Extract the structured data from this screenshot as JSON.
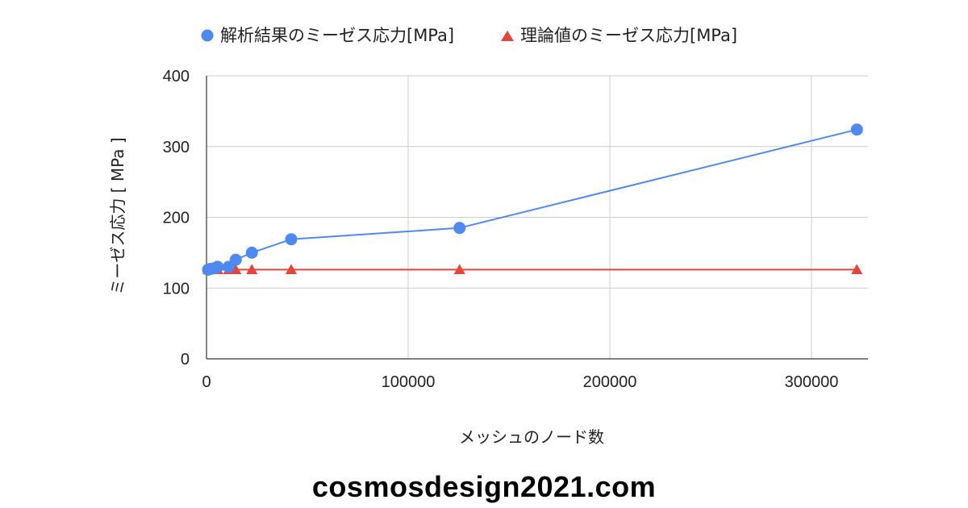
{
  "chart_data": {
    "type": "line",
    "title": "",
    "xlabel": "メッシュのノード数",
    "ylabel": "ミーゼス応力 [ MPa ]",
    "xlim": [
      0,
      328000
    ],
    "ylim": [
      0,
      400
    ],
    "xticks": [
      0,
      100000,
      200000,
      300000
    ],
    "xtick_labels": [
      "0",
      "100000",
      "200000",
      "300000"
    ],
    "yticks": [
      0,
      100,
      200,
      300,
      400
    ],
    "ytick_labels": [
      "0",
      "100",
      "200",
      "300",
      "400"
    ],
    "grid": true,
    "legend_position": "top",
    "series": [
      {
        "name": "解析結果のミーゼス応力[MPa]",
        "marker": "circle",
        "color": "#4d8af0",
        "x": [
          800,
          2000,
          4000,
          5500,
          11000,
          14500,
          22500,
          42000,
          125500,
          322500
        ],
        "y": [
          126,
          127,
          128,
          130,
          130,
          140,
          150,
          169,
          185,
          324
        ]
      },
      {
        "name": "理論値のミーゼス応力[MPa]",
        "marker": "triangle",
        "color": "#e8433a",
        "x": [
          800,
          2000,
          4000,
          5500,
          11000,
          14500,
          22500,
          42000,
          125500,
          322500
        ],
        "y": [
          126,
          126,
          126,
          126,
          126,
          126,
          126,
          126,
          126,
          126
        ]
      }
    ]
  },
  "footer": {
    "site": "cosmosdesign2021.com"
  }
}
